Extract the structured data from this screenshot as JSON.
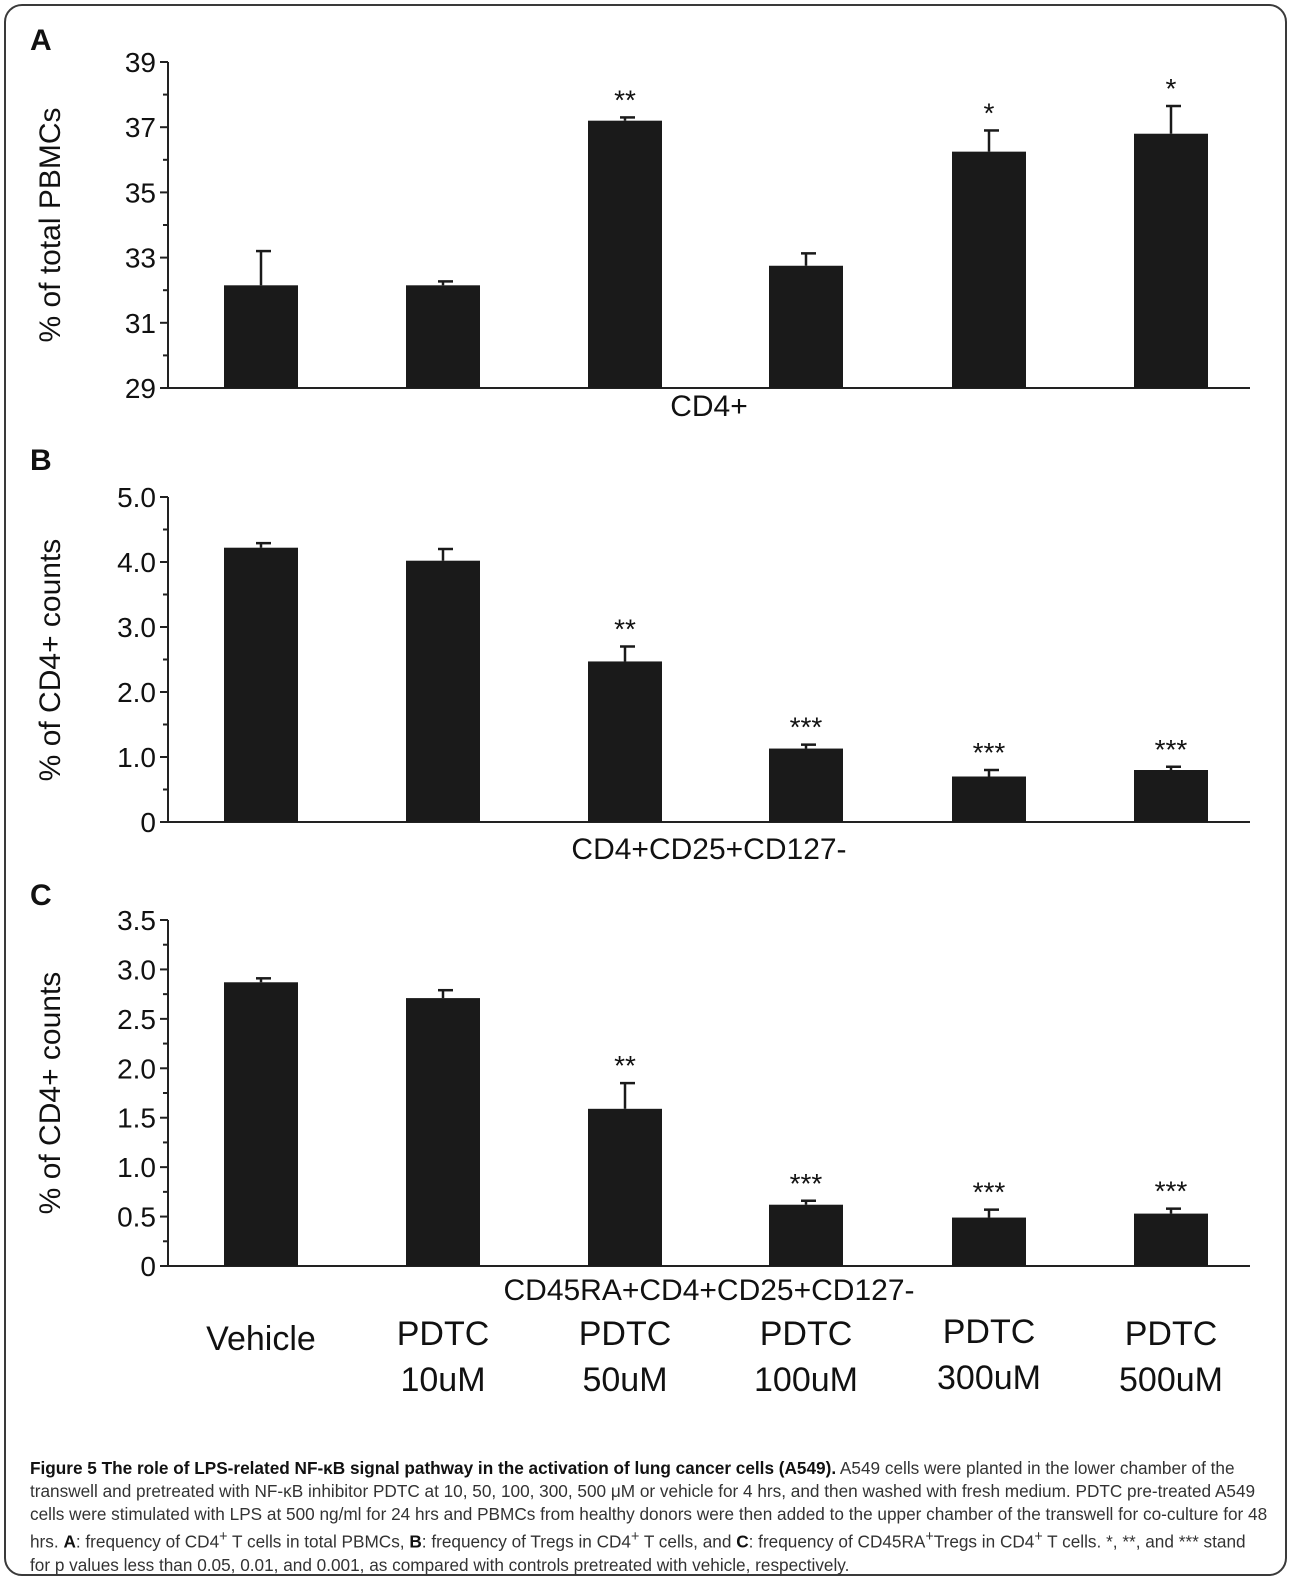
{
  "categories": [
    {
      "line1": "Vehicle",
      "line2": ""
    },
    {
      "line1": "PDTC",
      "line2": "10uM"
    },
    {
      "line1": "PDTC",
      "line2": "50uM"
    },
    {
      "line1": "PDTC",
      "line2": "100uM"
    },
    {
      "line1": "PDTC",
      "line2": "300uM"
    },
    {
      "line1": "PDTC",
      "line2": "500uM"
    }
  ],
  "chart_data": [
    {
      "panel": "A",
      "type": "bar",
      "categories": [
        "Vehicle",
        "PDTC 10uM",
        "PDTC 50uM",
        "PDTC 100uM",
        "PDTC 300uM",
        "PDTC 500uM"
      ],
      "values": [
        32.15,
        32.15,
        37.2,
        32.75,
        36.25,
        36.8
      ],
      "errors": [
        1.05,
        0.12,
        0.1,
        0.38,
        0.65,
        0.85
      ],
      "significance": [
        "",
        "",
        "**",
        "",
        "*",
        "*"
      ],
      "ylabel": "% of total PBMCs",
      "xlabel": "CD4+",
      "ylim": [
        29,
        39
      ],
      "yticks": [
        "29",
        "31",
        "33",
        "35",
        "37",
        "39"
      ]
    },
    {
      "panel": "B",
      "type": "bar",
      "categories": [
        "Vehicle",
        "PDTC 10uM",
        "PDTC 50uM",
        "PDTC 100uM",
        "PDTC 300uM",
        "PDTC 500uM"
      ],
      "values": [
        4.22,
        4.02,
        2.47,
        1.13,
        0.7,
        0.8
      ],
      "errors": [
        0.07,
        0.18,
        0.23,
        0.06,
        0.1,
        0.05
      ],
      "significance": [
        "",
        "",
        "**",
        "***",
        "***",
        "***"
      ],
      "ylabel": "% of CD4+ counts",
      "xlabel": "CD4+CD25+CD127-",
      "ylim": [
        0,
        5
      ],
      "yticks": [
        "0",
        "1.0",
        "2.0",
        "3.0",
        "4.0",
        "5.0"
      ]
    },
    {
      "panel": "C",
      "type": "bar",
      "categories": [
        "Vehicle",
        "PDTC 10uM",
        "PDTC 50uM",
        "PDTC 100uM",
        "PDTC 300uM",
        "PDTC 500uM"
      ],
      "values": [
        2.87,
        2.71,
        1.59,
        0.62,
        0.49,
        0.53
      ],
      "errors": [
        0.04,
        0.08,
        0.26,
        0.04,
        0.08,
        0.05
      ],
      "significance": [
        "",
        "",
        "**",
        "***",
        "***",
        "***"
      ],
      "ylabel": "% of CD4+ counts",
      "xlabel": "CD45RA+CD4+CD25+CD127-",
      "ylim": [
        0,
        3.5
      ],
      "yticks": [
        "0",
        "0.5",
        "1.0",
        "1.5",
        "2.0",
        "2.5",
        "3.0",
        "3.5"
      ]
    }
  ],
  "caption": {
    "lead": "Figure 5 The role of LPS-related NF-κB signal pathway in the activation of lung cancer cells (A549).",
    "body": " A549 cells were planted in the lower chamber of the transwell and pretreated with NF-κB inhibitor PDTC at 10, 50, 100, 300, 500 μM or vehicle for 4 hrs, and then washed with fresh medium. PDTC pre-treated A549 cells were stimulated with LPS at 500 ng/ml for 24 hrs and PBMCs from healthy donors were then added to the upper chamber of the transwell for co-culture for 48 hrs. ",
    "a_label": "A",
    "a_text": ": frequency of CD4",
    "sup_plus": "+",
    "a_text2": " T cells in total PBMCs, ",
    "b_label": "B",
    "b_text": ": frequency of Tregs in CD4",
    "b_text2": " T cells, and ",
    "c_label": "C",
    "c_text": ": frequency of CD45RA",
    "c_text2": "Tregs in CD4",
    "c_text3": " T cells. *, **, and *** stand for p values less than 0.05, 0.01, and 0.001, as compared with controls pretreated with vehicle, respectively."
  }
}
